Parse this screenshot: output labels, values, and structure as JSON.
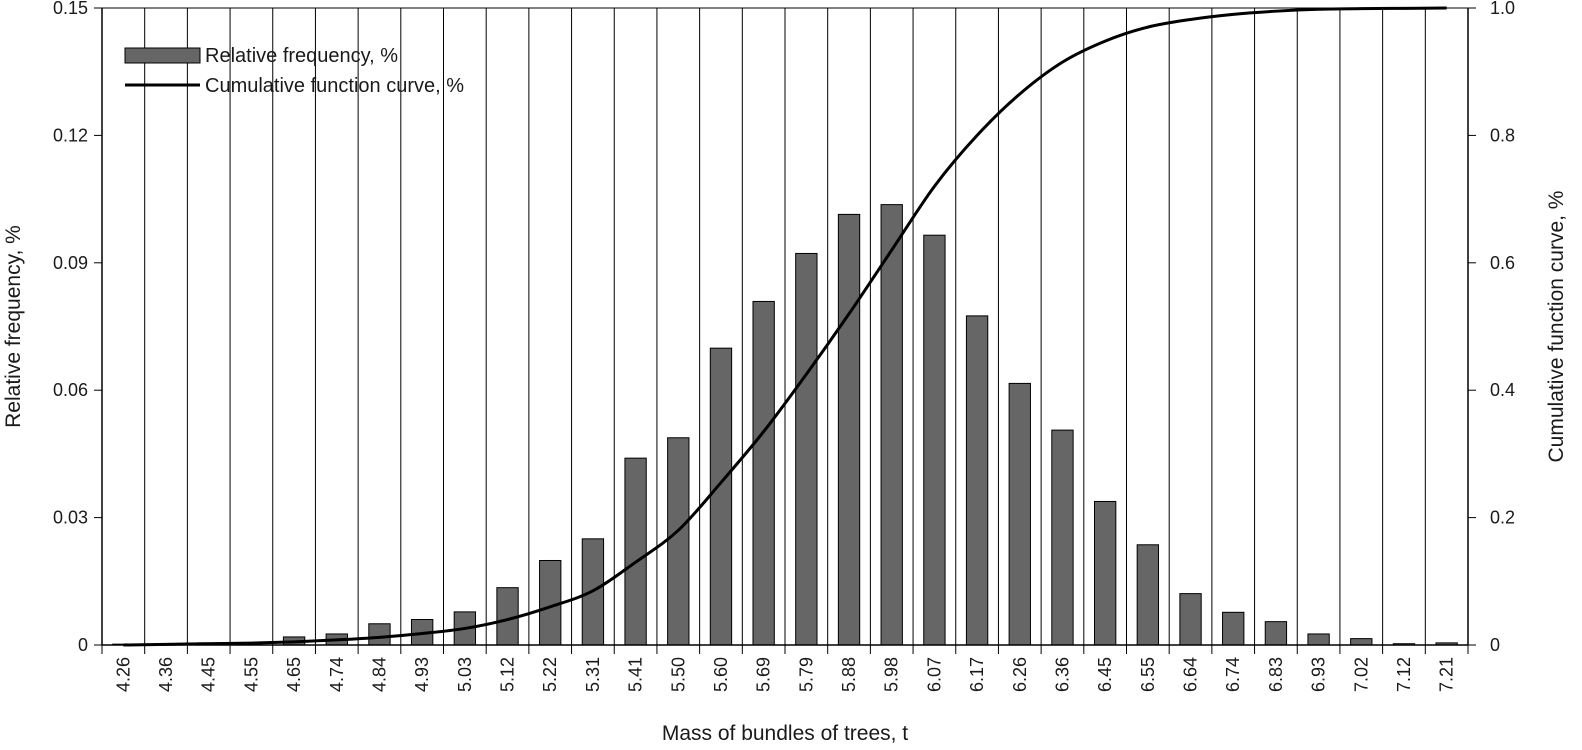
{
  "chart_data": {
    "type": "bar",
    "categories": [
      "4.26",
      "4.36",
      "4.45",
      "4.55",
      "4.65",
      "4.74",
      "4.84",
      "4.93",
      "5.03",
      "5.12",
      "5.22",
      "5.31",
      "5.41",
      "5.50",
      "5.60",
      "5.69",
      "5.79",
      "5.88",
      "5.98",
      "6.07",
      "6.17",
      "6.26",
      "6.36",
      "6.45",
      "6.55",
      "6.64",
      "6.74",
      "6.83",
      "6.93",
      "7.02",
      "7.12",
      "7.21"
    ],
    "series": [
      {
        "name": "Relative frequency, %",
        "kind": "bar",
        "axis": "left",
        "values": [
          0.0002,
          0.0003,
          0.0005,
          0.0006,
          0.0019,
          0.0026,
          0.005,
          0.006,
          0.0078,
          0.0135,
          0.0199,
          0.025,
          0.044,
          0.0488,
          0.0699,
          0.0809,
          0.0922,
          0.1014,
          0.1037,
          0.0965,
          0.0775,
          0.0616,
          0.0506,
          0.0338,
          0.0236,
          0.0121,
          0.0077,
          0.0055,
          0.0026,
          0.0015,
          0.0003,
          0.0005
        ]
      },
      {
        "name": "Cumulative function curve, %",
        "kind": "line",
        "axis": "right",
        "values": [
          0.0,
          0.001,
          0.002,
          0.003,
          0.005,
          0.008,
          0.012,
          0.018,
          0.026,
          0.04,
          0.06,
          0.085,
          0.13,
          0.18,
          0.255,
          0.335,
          0.425,
          0.52,
          0.62,
          0.72,
          0.8,
          0.865,
          0.915,
          0.948,
          0.97,
          0.982,
          0.99,
          0.995,
          0.998,
          0.999,
          0.9995,
          1.0
        ]
      }
    ],
    "xlabel": "Mass of bundles of trees, t",
    "ylabel": "Relative frequency, %",
    "y2label": "Cumulative function curve, %",
    "ylim": [
      0,
      0.15
    ],
    "y2lim": [
      0,
      1.0
    ],
    "yticks": [
      "0",
      "0.03",
      "0.06",
      "0.09",
      "0.12",
      "0.15"
    ],
    "y2ticks": [
      "0",
      "0.2",
      "0.4",
      "0.6",
      "0.8",
      "1.0"
    ],
    "grid": "vertical",
    "legend_position": "top-left",
    "colors": {
      "bar_fill": "#666666",
      "bar_stroke": "#000000",
      "line": "#000000",
      "grid": "#000000"
    }
  }
}
